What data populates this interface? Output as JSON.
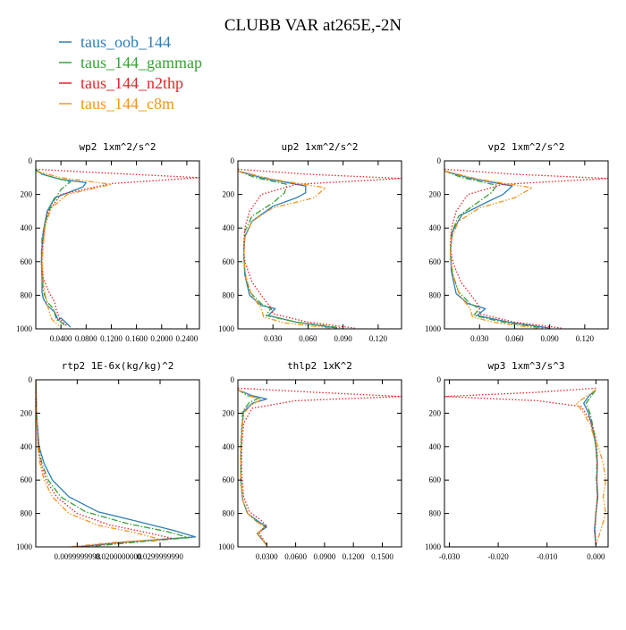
{
  "figure": {
    "title": "CLUBB VAR at265E,-2N",
    "legend": [
      {
        "label": "taus_oob_144",
        "color": "#2f7eb5",
        "dash": "solid"
      },
      {
        "label": "taus_144_gammap",
        "color": "#3aa135",
        "dash": "dashdot"
      },
      {
        "label": "taus_144_n2thp",
        "color": "#e0262b",
        "dash": "dotted"
      },
      {
        "label": "taus_144_c8m",
        "color": "#f7941d",
        "dash": "dashdotdot"
      }
    ]
  },
  "chart_data": [
    {
      "type": "line",
      "title": "wp2   1xm^2/s^2",
      "xlim": [
        0,
        0.26
      ],
      "ylim": [
        1000,
        0
      ],
      "xticks": [
        0.04,
        0.08,
        0.12,
        0.16,
        0.2,
        0.24
      ],
      "xtick_labels": [
        "0.0400",
        "0.0800",
        "0.1200",
        "0.1600",
        "0.2000",
        "0.2400"
      ],
      "yticks": [
        0,
        200,
        400,
        600,
        800,
        1000
      ],
      "ytick_labels": [
        "0",
        "200",
        "400",
        "600",
        "800",
        "1000"
      ],
      "series": [
        {
          "name": "taus_oob_144",
          "x": [
            0,
            0.01,
            0.04,
            0.08,
            0.075,
            0.03,
            0.018,
            0.012,
            0.01,
            0.009,
            0.01,
            0.01,
            0.012,
            0.018,
            0.03,
            0.036,
            0.04,
            0.05,
            0.055
          ],
          "y": [
            50,
            80,
            110,
            130,
            155,
            220,
            300,
            420,
            520,
            600,
            700,
            780,
            820,
            860,
            900,
            950,
            935,
            970,
            990
          ]
        },
        {
          "name": "taus_144_gammap",
          "x": [
            0,
            0.02,
            0.055,
            0.04,
            0.025,
            0.015,
            0.01,
            0.009,
            0.01,
            0.012,
            0.018,
            0.028,
            0.033,
            0.04,
            0.048
          ],
          "y": [
            60,
            90,
            125,
            170,
            260,
            360,
            460,
            560,
            660,
            780,
            840,
            880,
            945,
            960,
            985
          ]
        },
        {
          "name": "taus_144_n2thp",
          "x": [
            0,
            0.1,
            0.26,
            0.12,
            0.04,
            0.02,
            0.014,
            0.011,
            0.01,
            0.012,
            0.022,
            0.03,
            0.032,
            0.038,
            0.05
          ],
          "y": [
            50,
            70,
            100,
            135,
            200,
            300,
            400,
            500,
            600,
            700,
            790,
            840,
            880,
            940,
            985
          ]
        },
        {
          "name": "taus_144_c8m",
          "x": [
            0,
            0.04,
            0.12,
            0.05,
            0.025,
            0.015,
            0.012,
            0.01,
            0.012,
            0.015,
            0.02,
            0.025,
            0.03,
            0.04
          ],
          "y": [
            60,
            100,
            140,
            200,
            280,
            380,
            500,
            620,
            720,
            800,
            880,
            940,
            960,
            990
          ]
        }
      ]
    },
    {
      "type": "line",
      "title": "up2   1xm^2/s^2",
      "xlim": [
        0,
        0.14
      ],
      "ylim": [
        1000,
        0
      ],
      "xticks": [
        0.03,
        0.06,
        0.09,
        0.12
      ],
      "xtick_labels": [
        "0.030",
        "0.060",
        "0.090",
        "0.120"
      ],
      "yticks": [
        0,
        200,
        400,
        600,
        800,
        1000
      ],
      "ytick_labels": [
        "0",
        "200",
        "400",
        "600",
        "800",
        "1000"
      ],
      "series": [
        {
          "name": "taus_oob_144",
          "x": [
            0,
            0.02,
            0.058,
            0.058,
            0.05,
            0.03,
            0.012,
            0.006,
            0.005,
            0.006,
            0.01,
            0.02,
            0.032,
            0.026,
            0.05,
            0.085
          ],
          "y": [
            60,
            100,
            150,
            190,
            220,
            270,
            360,
            450,
            560,
            680,
            800,
            860,
            880,
            920,
            960,
            995
          ]
        },
        {
          "name": "taus_144_gammap",
          "x": [
            0,
            0.015,
            0.042,
            0.04,
            0.03,
            0.012,
            0.006,
            0.005,
            0.006,
            0.01,
            0.02,
            0.028,
            0.024,
            0.05,
            0.09
          ],
          "y": [
            60,
            100,
            140,
            190,
            250,
            330,
            420,
            540,
            660,
            780,
            850,
            880,
            920,
            960,
            995
          ]
        },
        {
          "name": "taus_144_n2thp",
          "x": [
            0,
            0.06,
            0.14,
            0.05,
            0.02,
            0.01,
            0.006,
            0.005,
            0.006,
            0.012,
            0.022,
            0.028,
            0.03,
            0.06,
            0.1
          ],
          "y": [
            50,
            80,
            105,
            140,
            200,
            300,
            400,
            500,
            600,
            720,
            820,
            870,
            910,
            960,
            995
          ]
        },
        {
          "name": "taus_144_c8m",
          "x": [
            0,
            0.03,
            0.075,
            0.065,
            0.03,
            0.012,
            0.006,
            0.005,
            0.007,
            0.012,
            0.02,
            0.022,
            0.04,
            0.08
          ],
          "y": [
            60,
            110,
            160,
            220,
            280,
            360,
            460,
            580,
            700,
            800,
            880,
            930,
            965,
            995
          ]
        }
      ]
    },
    {
      "type": "line",
      "title": "vp2   1xm^2/s^2",
      "xlim": [
        0,
        0.14
      ],
      "ylim": [
        1000,
        0
      ],
      "xticks": [
        0.03,
        0.06,
        0.09,
        0.12
      ],
      "xtick_labels": [
        "0.030",
        "0.060",
        "0.090",
        "0.120"
      ],
      "yticks": [
        0,
        200,
        400,
        600,
        800,
        1000
      ],
      "ytick_labels": [
        "0",
        "200",
        "400",
        "600",
        "800",
        "1000"
      ],
      "series": [
        {
          "name": "taus_oob_144",
          "x": [
            0,
            0.02,
            0.058,
            0.05,
            0.035,
            0.015,
            0.007,
            0.005,
            0.006,
            0.01,
            0.02,
            0.035,
            0.028,
            0.055,
            0.09
          ],
          "y": [
            60,
            100,
            150,
            200,
            250,
            320,
            420,
            540,
            660,
            790,
            850,
            880,
            920,
            960,
            995
          ]
        },
        {
          "name": "taus_144_gammap",
          "x": [
            0,
            0.015,
            0.045,
            0.04,
            0.028,
            0.012,
            0.006,
            0.005,
            0.007,
            0.012,
            0.022,
            0.03,
            0.025,
            0.05,
            0.085
          ],
          "y": [
            60,
            100,
            145,
            190,
            250,
            330,
            430,
            550,
            670,
            780,
            850,
            880,
            920,
            960,
            995
          ]
        },
        {
          "name": "taus_144_n2thp",
          "x": [
            0,
            0.06,
            0.14,
            0.05,
            0.02,
            0.01,
            0.006,
            0.005,
            0.007,
            0.014,
            0.025,
            0.03,
            0.03,
            0.06,
            0.1
          ],
          "y": [
            50,
            80,
            105,
            140,
            200,
            300,
            400,
            500,
            600,
            720,
            820,
            870,
            910,
            960,
            995
          ]
        },
        {
          "name": "taus_144_c8m",
          "x": [
            0,
            0.03,
            0.075,
            0.06,
            0.03,
            0.012,
            0.006,
            0.005,
            0.008,
            0.013,
            0.022,
            0.024,
            0.045,
            0.08
          ],
          "y": [
            60,
            110,
            160,
            220,
            280,
            360,
            460,
            580,
            700,
            800,
            880,
            930,
            965,
            995
          ]
        }
      ]
    },
    {
      "type": "line",
      "title": "rtp2   1E-6x(kg/kg)^2",
      "xlim": [
        0,
        0.0395
      ],
      "ylim": [
        1000,
        0
      ],
      "xticks": [
        0.01,
        0.02,
        0.03
      ],
      "xtick_labels": [
        "0.0099999998",
        "0.0200000000",
        "0.0299999990"
      ],
      "yticks": [
        0,
        200,
        400,
        600,
        800,
        1000
      ],
      "ytick_labels": [
        "0",
        "200",
        "400",
        "600",
        "800",
        "1000"
      ],
      "series": [
        {
          "name": "taus_oob_144",
          "x": [
            0,
            0.0002,
            0.0008,
            0.002,
            0.004,
            0.008,
            0.015,
            0.025,
            0.033,
            0.0385,
            0.03,
            0.02,
            0.01
          ],
          "y": [
            0,
            200,
            400,
            500,
            600,
            700,
            790,
            850,
            900,
            940,
            955,
            975,
            1000
          ]
        },
        {
          "name": "taus_144_gammap",
          "x": [
            0,
            0.0002,
            0.0006,
            0.0015,
            0.003,
            0.006,
            0.012,
            0.022,
            0.032,
            0.037,
            0.025,
            0.012
          ],
          "y": [
            0,
            200,
            400,
            500,
            600,
            700,
            790,
            860,
            910,
            945,
            970,
            1000
          ]
        },
        {
          "name": "taus_144_n2thp",
          "x": [
            0,
            0.0002,
            0.0006,
            0.0012,
            0.0025,
            0.005,
            0.01,
            0.018,
            0.027,
            0.033,
            0.02,
            0.01
          ],
          "y": [
            0,
            200,
            400,
            500,
            600,
            700,
            800,
            870,
            915,
            950,
            975,
            1000
          ]
        },
        {
          "name": "taus_144_c8m",
          "x": [
            0,
            0.0002,
            0.0005,
            0.001,
            0.002,
            0.004,
            0.008,
            0.015,
            0.024,
            0.03,
            0.018,
            0.008
          ],
          "y": [
            0,
            200,
            400,
            500,
            600,
            700,
            800,
            870,
            915,
            955,
            975,
            1000
          ]
        }
      ]
    },
    {
      "type": "line",
      "title": "thlp2   1xK^2",
      "xlim": [
        0,
        0.17
      ],
      "ylim": [
        1000,
        0
      ],
      "xticks": [
        0.03,
        0.06,
        0.09,
        0.12,
        0.15
      ],
      "xtick_labels": [
        "0.0300",
        "0.0600",
        "0.0900",
        "0.1200",
        "0.1500"
      ],
      "yticks": [
        0,
        200,
        400,
        600,
        800,
        1000
      ],
      "ytick_labels": [
        "0",
        "200",
        "400",
        "600",
        "800",
        "1000"
      ],
      "series": [
        {
          "name": "taus_oob_144",
          "x": [
            0,
            0.015,
            0.03,
            0.015,
            0.006,
            0.004,
            0.003,
            0.003,
            0.005,
            0.01,
            0.022,
            0.03,
            0.02,
            0.03
          ],
          "y": [
            60,
            95,
            115,
            140,
            190,
            300,
            450,
            600,
            720,
            800,
            850,
            880,
            920,
            990
          ]
        },
        {
          "name": "taus_144_gammap",
          "x": [
            0,
            0.01,
            0.022,
            0.012,
            0.005,
            0.004,
            0.003,
            0.003,
            0.005,
            0.01,
            0.02,
            0.028,
            0.02,
            0.03
          ],
          "y": [
            60,
            95,
            110,
            135,
            190,
            300,
            450,
            600,
            720,
            800,
            850,
            880,
            920,
            990
          ]
        },
        {
          "name": "taus_144_n2thp",
          "x": [
            0,
            0.08,
            0.17,
            0.06,
            0.015,
            0.006,
            0.004,
            0.004,
            0.006,
            0.012,
            0.024,
            0.03,
            0.022,
            0.03
          ],
          "y": [
            50,
            75,
            100,
            125,
            170,
            260,
            400,
            560,
            700,
            790,
            840,
            875,
            915,
            990
          ]
        },
        {
          "name": "taus_144_c8m",
          "x": [
            0,
            0.012,
            0.024,
            0.014,
            0.006,
            0.004,
            0.003,
            0.003,
            0.005,
            0.01,
            0.02,
            0.028,
            0.02,
            0.03
          ],
          "y": [
            60,
            95,
            120,
            150,
            200,
            300,
            450,
            600,
            720,
            800,
            850,
            880,
            920,
            990
          ]
        }
      ]
    },
    {
      "type": "line",
      "title": "wp3   1xm^3/s^3",
      "xlim": [
        -0.031,
        0.0025
      ],
      "ylim": [
        1000,
        0
      ],
      "xticks": [
        -0.03,
        -0.02,
        -0.01,
        0.0
      ],
      "xtick_labels": [
        "-0.030",
        "-0.020",
        "-0.010",
        "0.000"
      ],
      "yticks": [
        0,
        200,
        400,
        600,
        800,
        1000
      ],
      "ytick_labels": [
        "0",
        "200",
        "400",
        "600",
        "800",
        "1000"
      ],
      "series": [
        {
          "name": "taus_oob_144",
          "x": [
            0.0,
            -0.0015,
            -0.0025,
            -0.0015,
            -0.0008,
            -0.0003,
            0.0,
            0.0003,
            0.0002,
            0.0004,
            0.0,
            -0.0003,
            0.0
          ],
          "y": [
            60,
            100,
            140,
            200,
            280,
            350,
            400,
            500,
            600,
            700,
            800,
            900,
            990
          ]
        },
        {
          "name": "taus_144_gammap",
          "x": [
            0.0,
            -0.001,
            -0.002,
            -0.0012,
            -0.0006,
            -0.0002,
            0.0,
            0.0002,
            0.0001,
            0.0003,
            0.0,
            -0.0002,
            0.0
          ],
          "y": [
            60,
            100,
            140,
            200,
            280,
            350,
            400,
            500,
            600,
            700,
            800,
            900,
            990
          ]
        },
        {
          "name": "taus_144_n2thp",
          "x": [
            0.0,
            -0.012,
            -0.031,
            -0.012,
            -0.003,
            -0.001,
            0.0,
            0.0003,
            0.0002,
            0.0003,
            0.0,
            -0.0002,
            0.0
          ],
          "y": [
            50,
            75,
            100,
            125,
            160,
            250,
            350,
            450,
            600,
            700,
            800,
            900,
            990
          ]
        },
        {
          "name": "taus_144_c8m",
          "x": [
            0.0,
            -0.002,
            -0.004,
            -0.0025,
            -0.001,
            -0.0004,
            0.0005,
            0.0015,
            0.002,
            0.0015,
            0.002,
            0.001,
            0.0
          ],
          "y": [
            60,
            100,
            140,
            200,
            280,
            350,
            400,
            500,
            600,
            700,
            800,
            900,
            990
          ]
        }
      ]
    }
  ]
}
